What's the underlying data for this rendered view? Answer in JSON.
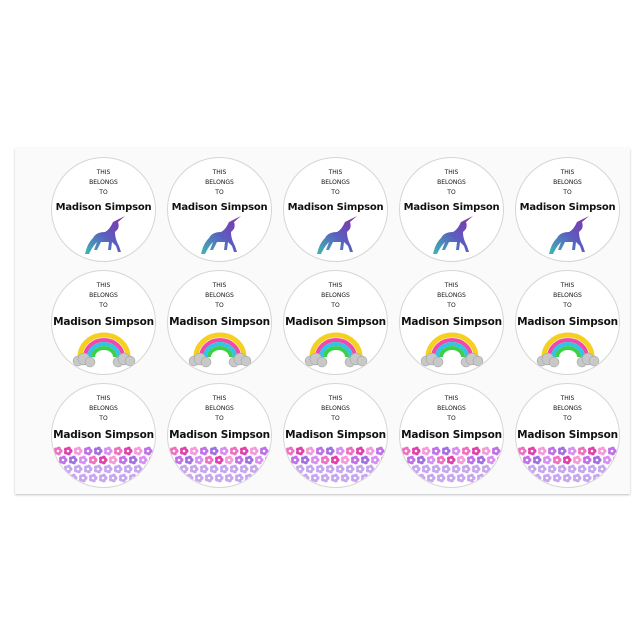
{
  "product": {
    "line1": "THIS",
    "line2": "BELONGS",
    "line3": "TO",
    "name": "Madison Simpson",
    "rows": [
      {
        "design": "unicorn-icon",
        "count": 5
      },
      {
        "design": "rainbow-icon",
        "count": 5
      },
      {
        "design": "flowers-icon",
        "count": 5
      }
    ],
    "colors": {
      "unicorn_start": "#3fb8b0",
      "unicorn_end": "#7a2fa8",
      "pink": "#f050b0",
      "purple": "#a070e0"
    }
  }
}
